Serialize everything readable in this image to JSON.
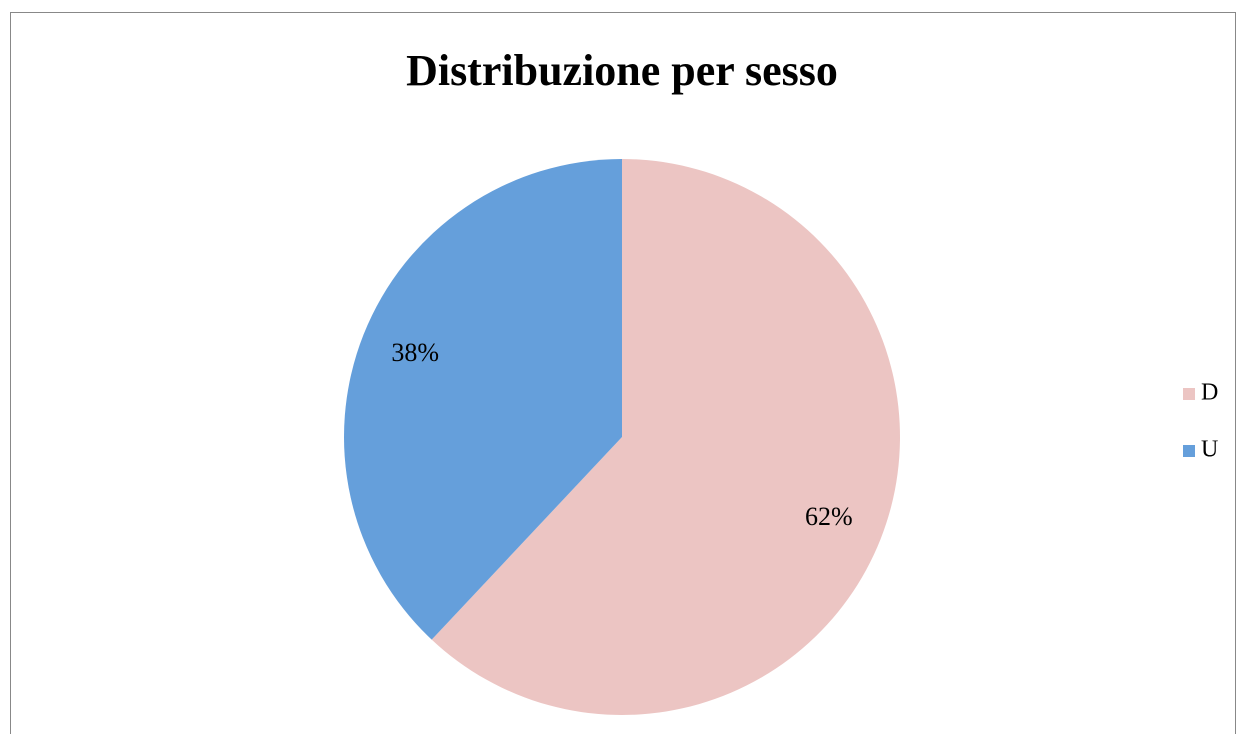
{
  "chart_data": {
    "type": "pie",
    "title": "Distribuzione per sesso",
    "categories": [
      "D",
      "U"
    ],
    "values": [
      62,
      38
    ],
    "value_labels": [
      "62%",
      "38%"
    ],
    "colors": [
      "#ecc5c3",
      "#659fdb"
    ],
    "legend": "right"
  }
}
